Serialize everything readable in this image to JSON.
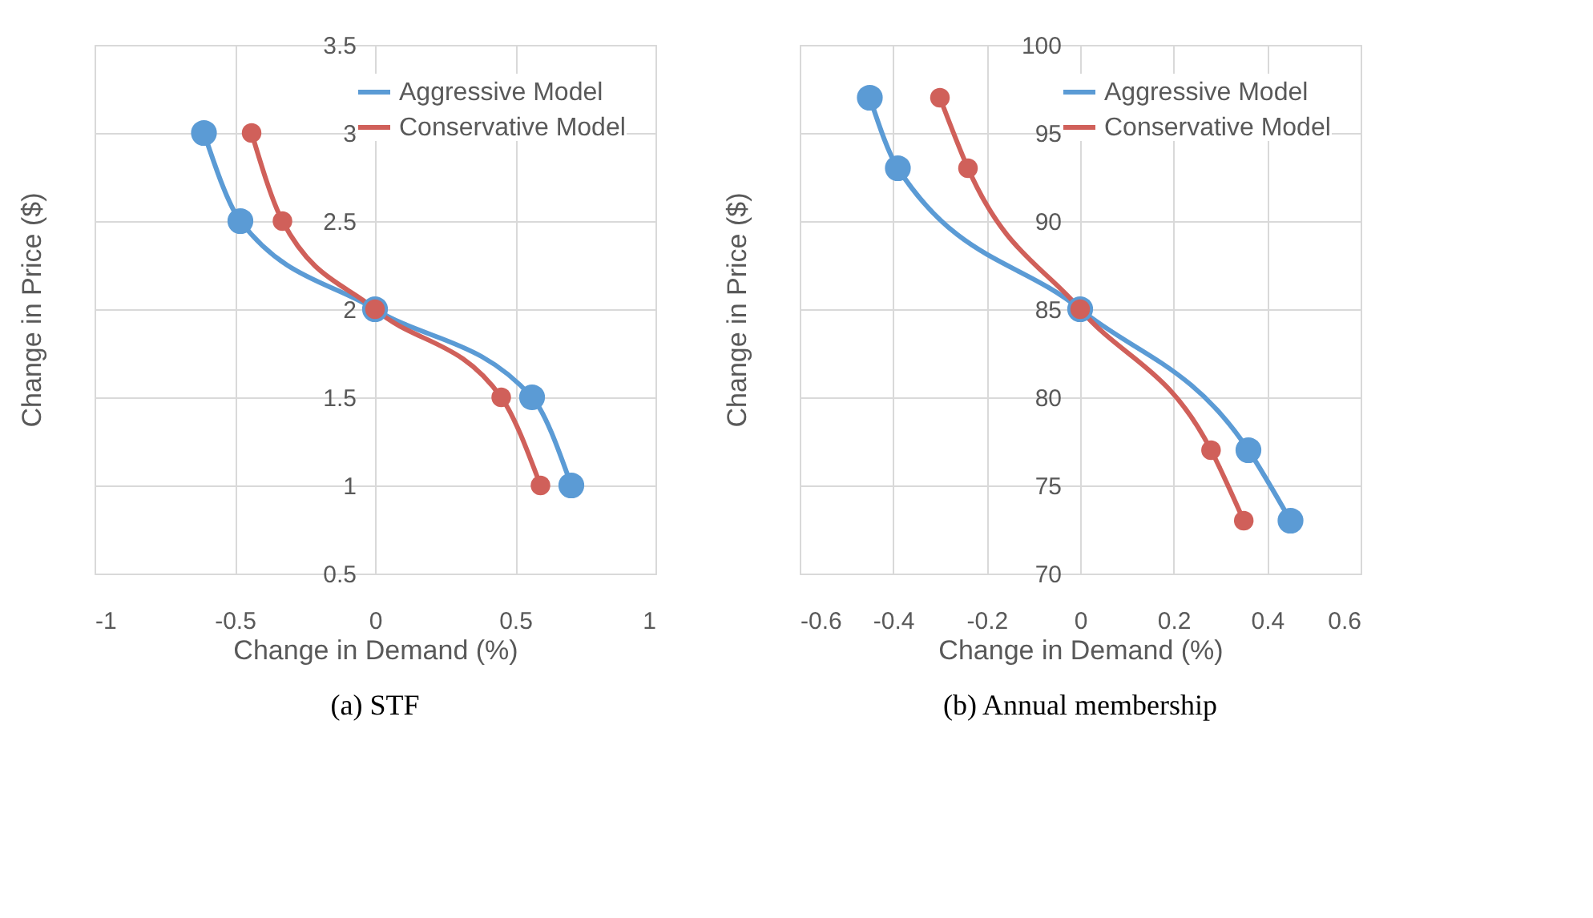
{
  "chart_data": [
    {
      "type": "line",
      "title": "(a) STF",
      "xlabel": "Change in Demand (%)",
      "ylabel": "Change in Price ($)",
      "xlim": [
        -1,
        1
      ],
      "xticks": [
        -1,
        -0.5,
        0,
        0.5,
        1
      ],
      "ylim": [
        0.5,
        3.5
      ],
      "yticks": [
        0.5,
        1,
        1.5,
        2,
        2.5,
        3,
        3.5
      ],
      "grid": true,
      "legend": "top right",
      "marker": "circle",
      "line_style": "solid",
      "series": [
        {
          "name": "Aggressive Model",
          "color": "#5b9bd5",
          "x": [
            -0.61,
            -0.48,
            0,
            0.56,
            0.7
          ],
          "values": [
            3,
            2.5,
            2,
            1.5,
            1
          ]
        },
        {
          "name": "Conservative Model",
          "color": "#d0605a",
          "x": [
            -0.44,
            -0.33,
            0,
            0.45,
            0.59
          ],
          "values": [
            3,
            2.5,
            2,
            1.5,
            1
          ]
        }
      ]
    },
    {
      "type": "line",
      "title": "(b) Annual membership",
      "xlabel": "Change in Demand (%)",
      "ylabel": "Change in Price ($)",
      "xlim": [
        -0.6,
        0.6
      ],
      "xticks": [
        -0.6,
        -0.4,
        -0.2,
        0,
        0.2,
        0.4,
        0.6
      ],
      "ylim": [
        70,
        100
      ],
      "yticks": [
        70,
        75,
        80,
        85,
        90,
        95,
        100
      ],
      "grid": true,
      "legend": "top right",
      "marker": "circle",
      "line_style": "solid",
      "series": [
        {
          "name": "Aggressive Model",
          "color": "#5b9bd5",
          "x": [
            -0.45,
            -0.39,
            0,
            0.36,
            0.45
          ],
          "values": [
            97,
            93,
            85,
            77,
            73
          ]
        },
        {
          "name": "Conservative Model",
          "color": "#d0605a",
          "x": [
            -0.3,
            -0.24,
            0,
            0.28,
            0.35
          ],
          "values": [
            97,
            93,
            85,
            77,
            73
          ]
        }
      ]
    }
  ]
}
